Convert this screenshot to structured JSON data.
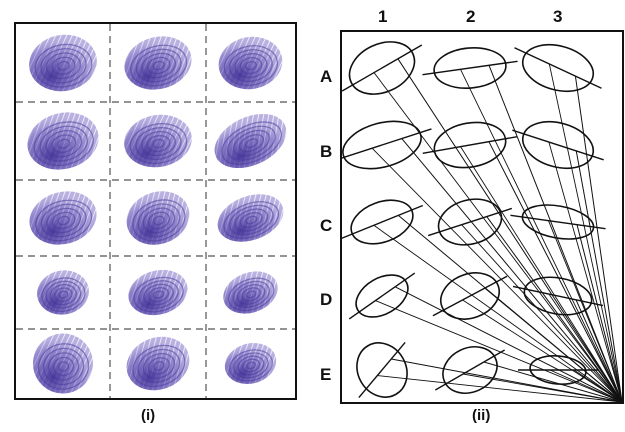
{
  "panel_i": {
    "label": "(i)",
    "rows": 5,
    "cols": 3,
    "ink_color": "#4a3a9c"
  },
  "panel_ii": {
    "label": "(ii)",
    "column_labels": [
      "1",
      "2",
      "3"
    ],
    "row_labels": [
      "A",
      "B",
      "C",
      "D",
      "E"
    ]
  }
}
